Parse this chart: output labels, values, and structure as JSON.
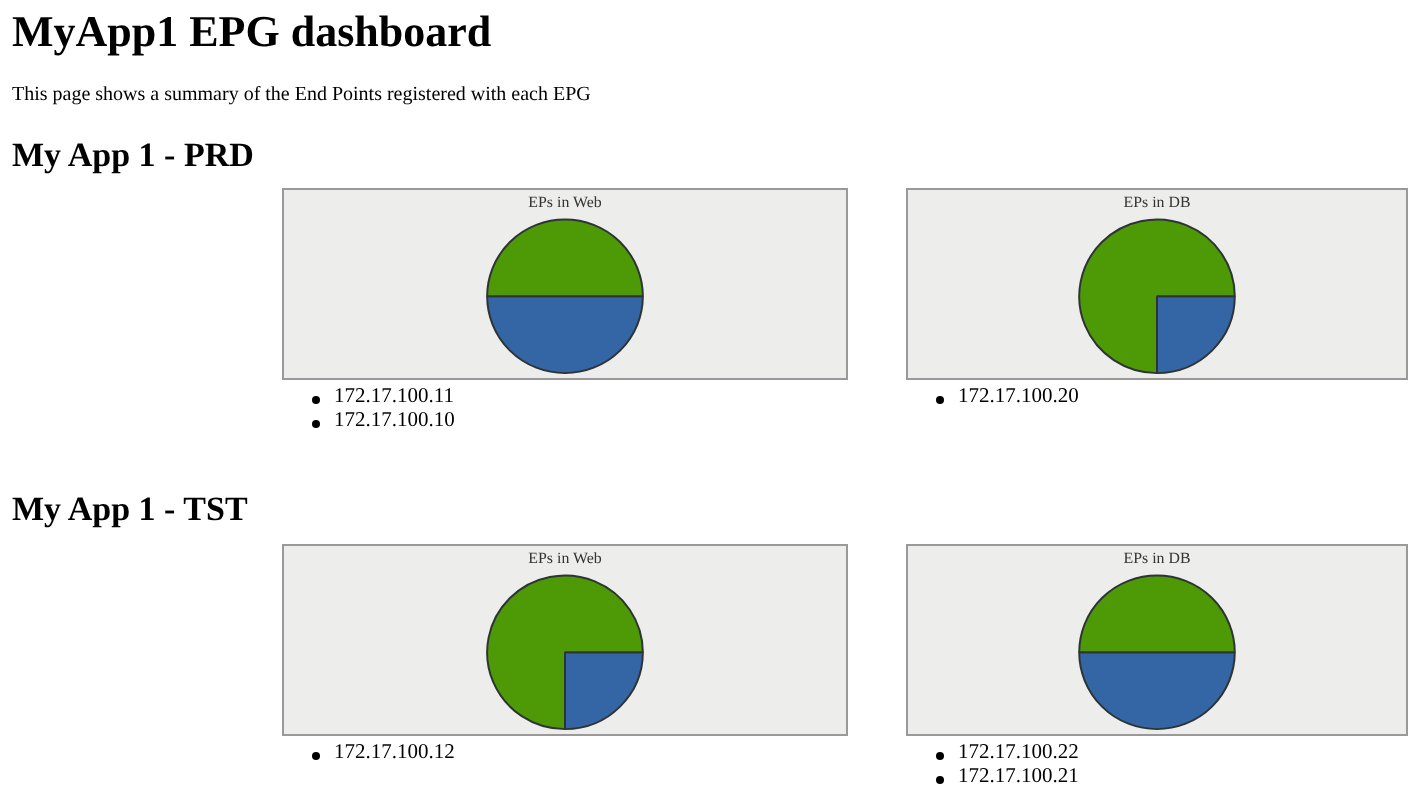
{
  "chart_data": [
    {
      "type": "other",
      "title": "MyApp1 EPG dashboard",
      "subtitle": "This page shows a summary of the End Points registered with each EPG"
    },
    {
      "type": "other",
      "title": "My App 1 - PRD"
    },
    {
      "type": "pie",
      "title": "EPs in Web",
      "categories": [
        null,
        null
      ],
      "values": [
        50,
        50
      ],
      "colors": [
        "#3465a4",
        "#4e9a06"
      ],
      "annotations": [
        "172.17.100.11",
        "172.17.100.10"
      ]
    },
    {
      "type": "pie",
      "title": "EPs in DB",
      "categories": [
        null,
        null
      ],
      "values": [
        25,
        75
      ],
      "colors": [
        "#3465a4",
        "#4e9a06"
      ],
      "annotations": [
        "172.17.100.20"
      ]
    },
    {
      "type": "other",
      "title": "My App 1 - TST"
    },
    {
      "type": "pie",
      "title": "EPs in Web",
      "categories": [
        null,
        null
      ],
      "values": [
        25,
        75
      ],
      "colors": [
        "#3465a4",
        "#4e9a06"
      ],
      "annotations": [
        "172.17.100.12"
      ]
    },
    {
      "type": "pie",
      "title": "EPs in DB",
      "categories": [
        null,
        null
      ],
      "values": [
        50,
        50
      ],
      "colors": [
        "#3465a4",
        "#4e9a06"
      ],
      "annotations": [
        "172.17.100.22",
        "172.17.100.21"
      ]
    }
  ]
}
